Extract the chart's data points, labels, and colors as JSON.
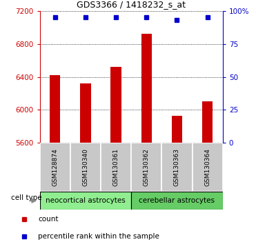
{
  "title": "GDS3366 / 1418232_s_at",
  "samples": [
    "GSM128874",
    "GSM130340",
    "GSM130361",
    "GSM130362",
    "GSM130363",
    "GSM130364"
  ],
  "counts": [
    6420,
    6320,
    6520,
    6920,
    5930,
    6100
  ],
  "percentile_ranks": [
    95,
    95,
    95,
    95,
    93,
    95
  ],
  "ylim_left": [
    5600,
    7200
  ],
  "yticks_left": [
    5600,
    6000,
    6400,
    6800,
    7200
  ],
  "yticks_right": [
    0,
    25,
    50,
    75,
    100
  ],
  "bar_color": "#cc0000",
  "dot_color": "#0000cc",
  "bar_width": 0.35,
  "group_labels": [
    "neocortical astrocytes",
    "cerebellar astrocytes"
  ],
  "group_colors": [
    "#90ee90",
    "#66cc66"
  ],
  "group_sizes": [
    3,
    3
  ],
  "cell_type_label": "cell type",
  "legend_items": [
    {
      "color": "#cc0000",
      "marker": "s",
      "label": "count"
    },
    {
      "color": "#0000cc",
      "marker": "s",
      "label": "percentile rank within the sample"
    }
  ],
  "grid_linestyle": "dotted",
  "tick_color_left": "#cc0000",
  "tick_color_right": "#0000cc",
  "sample_box_color": "#c8c8c8",
  "sample_box_edge": "#aaaaaa",
  "title_fontsize": 9,
  "tick_fontsize": 7.5,
  "sample_fontsize": 6.5,
  "group_fontsize": 7.5,
  "legend_fontsize": 7.5
}
